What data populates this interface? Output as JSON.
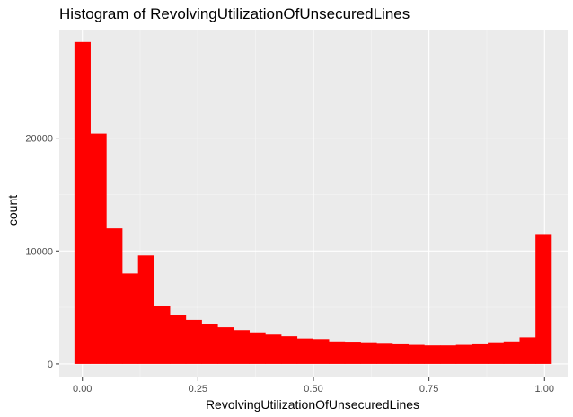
{
  "chart_data": {
    "type": "bar",
    "title": "Histogram of RevolvingUtilizationOfUnsecuredLines",
    "xlabel": "RevolvingUtilizationOfUnsecuredLines",
    "ylabel": "count",
    "bar_color": "#ff0000",
    "panel_background": "#ebebeb",
    "grid": true,
    "xlim": [
      -0.05,
      1.05
    ],
    "ylim": [
      -1200,
      29600
    ],
    "x_ticks": [
      "0.00",
      "0.25",
      "0.50",
      "0.75",
      "1.00"
    ],
    "y_ticks": [
      "0",
      "10000",
      "20000"
    ],
    "bin_width": 0.0344,
    "bins_start": -0.0172,
    "values": [
      28500,
      20400,
      12000,
      8000,
      9600,
      5100,
      4300,
      3900,
      3550,
      3250,
      3000,
      2800,
      2600,
      2450,
      2250,
      2200,
      2000,
      1900,
      1850,
      1800,
      1750,
      1700,
      1650,
      1650,
      1700,
      1750,
      1850,
      2000,
      2350,
      11500
    ]
  }
}
